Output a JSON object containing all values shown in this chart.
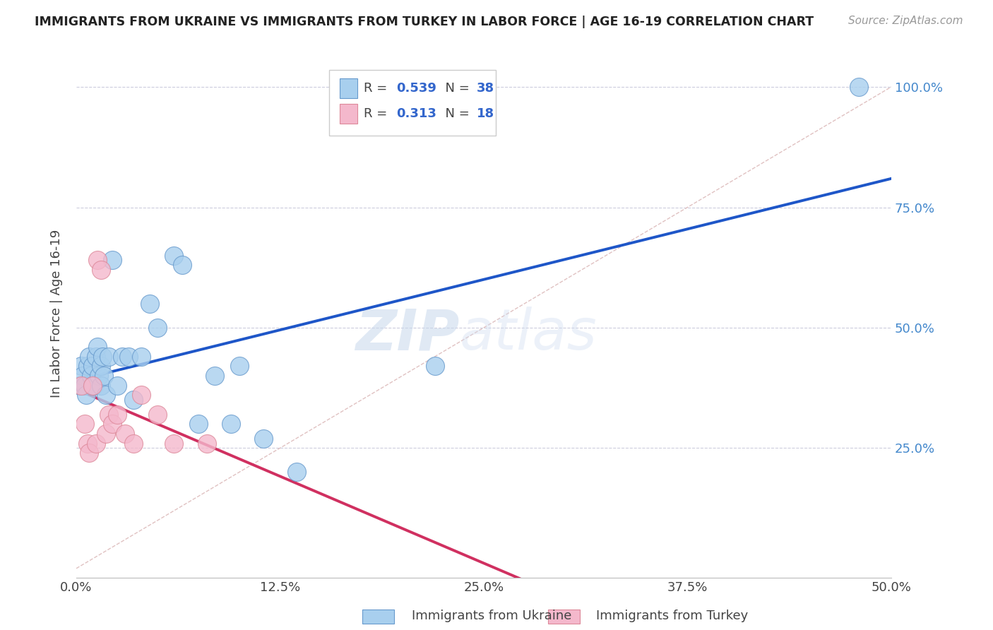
{
  "title": "IMMIGRANTS FROM UKRAINE VS IMMIGRANTS FROM TURKEY IN LABOR FORCE | AGE 16-19 CORRELATION CHART",
  "source": "Source: ZipAtlas.com",
  "ylabel": "In Labor Force | Age 16-19",
  "xlim": [
    0.0,
    0.5
  ],
  "ylim": [
    -0.02,
    1.08
  ],
  "ytick_labels": [
    "25.0%",
    "50.0%",
    "75.0%",
    "100.0%"
  ],
  "ytick_vals": [
    0.25,
    0.5,
    0.75,
    1.0
  ],
  "xtick_labels": [
    "0.0%",
    "12.5%",
    "25.0%",
    "37.5%",
    "50.0%"
  ],
  "xtick_vals": [
    0.0,
    0.125,
    0.25,
    0.375,
    0.5
  ],
  "ukraine_color": "#A8CFEE",
  "turkey_color": "#F4B8CC",
  "ukraine_edge": "#6699CC",
  "turkey_edge": "#DD8899",
  "regression_blue": "#1E56C8",
  "regression_pink": "#D03060",
  "diagonal_color": "#DDBBBB",
  "watermark_zip": "ZIP",
  "watermark_atlas": "atlas",
  "ukraine_x": [
    0.002,
    0.003,
    0.004,
    0.005,
    0.006,
    0.007,
    0.008,
    0.009,
    0.01,
    0.01,
    0.011,
    0.012,
    0.013,
    0.014,
    0.015,
    0.015,
    0.016,
    0.017,
    0.018,
    0.02,
    0.022,
    0.025,
    0.028,
    0.032,
    0.035,
    0.04,
    0.045,
    0.05,
    0.06,
    0.065,
    0.075,
    0.085,
    0.095,
    0.1,
    0.115,
    0.135,
    0.22,
    0.48
  ],
  "ukraine_y": [
    0.38,
    0.42,
    0.4,
    0.38,
    0.36,
    0.42,
    0.44,
    0.4,
    0.38,
    0.42,
    0.38,
    0.44,
    0.46,
    0.4,
    0.38,
    0.42,
    0.44,
    0.4,
    0.36,
    0.44,
    0.64,
    0.38,
    0.44,
    0.44,
    0.35,
    0.44,
    0.55,
    0.5,
    0.65,
    0.63,
    0.3,
    0.4,
    0.3,
    0.42,
    0.27,
    0.2,
    0.42,
    1.0
  ],
  "turkey_x": [
    0.003,
    0.005,
    0.007,
    0.008,
    0.01,
    0.012,
    0.013,
    0.015,
    0.018,
    0.02,
    0.022,
    0.025,
    0.03,
    0.035,
    0.04,
    0.05,
    0.06,
    0.08
  ],
  "turkey_y": [
    0.38,
    0.3,
    0.26,
    0.24,
    0.38,
    0.26,
    0.64,
    0.62,
    0.28,
    0.32,
    0.3,
    0.32,
    0.28,
    0.26,
    0.36,
    0.32,
    0.26,
    0.26
  ]
}
